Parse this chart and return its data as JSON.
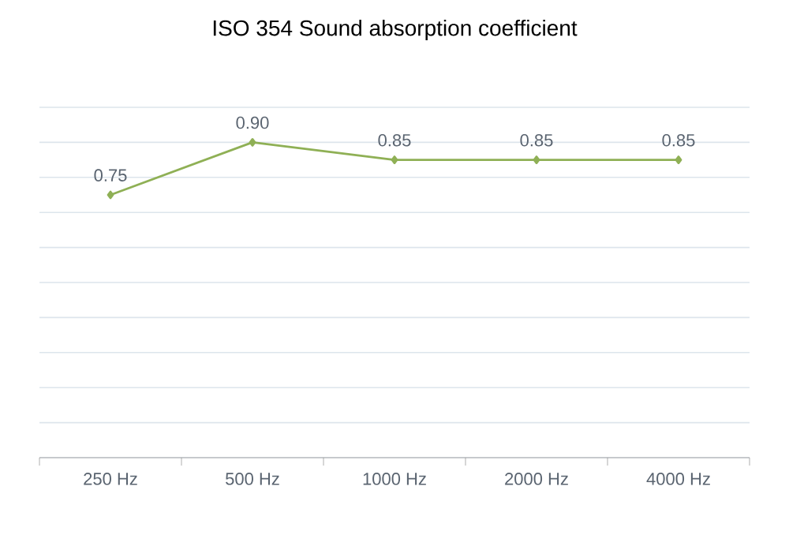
{
  "chart_data": {
    "type": "line",
    "title": "ISO 354 Sound absorption coefficient",
    "categories": [
      "250 Hz",
      "500 Hz",
      "1000 Hz",
      "2000 Hz",
      "4000 Hz"
    ],
    "values": [
      0.75,
      0.9,
      0.85,
      0.85,
      0.85
    ],
    "value_labels": [
      "0.75",
      "0.90",
      "0.85",
      "0.85",
      "0.85"
    ],
    "color": "#8fb055",
    "marker": "diamond",
    "line_style": "solid",
    "ylim": [
      0,
      1
    ],
    "yticks": [
      {
        "value": 0,
        "label": null
      },
      {
        "value": 0.1,
        "label": null
      },
      {
        "value": 0.2,
        "label": null
      },
      {
        "value": 0.3,
        "label": null
      },
      {
        "value": 0.4,
        "label": null
      },
      {
        "value": 0.5,
        "label": null
      },
      {
        "value": 0.6,
        "label": null
      },
      {
        "value": 0.7,
        "label": null
      },
      {
        "value": 0.8,
        "label": null
      },
      {
        "value": 0.9,
        "label": null
      },
      {
        "value": 1,
        "label": null
      }
    ],
    "grid": "y",
    "tick_labels": "x"
  }
}
